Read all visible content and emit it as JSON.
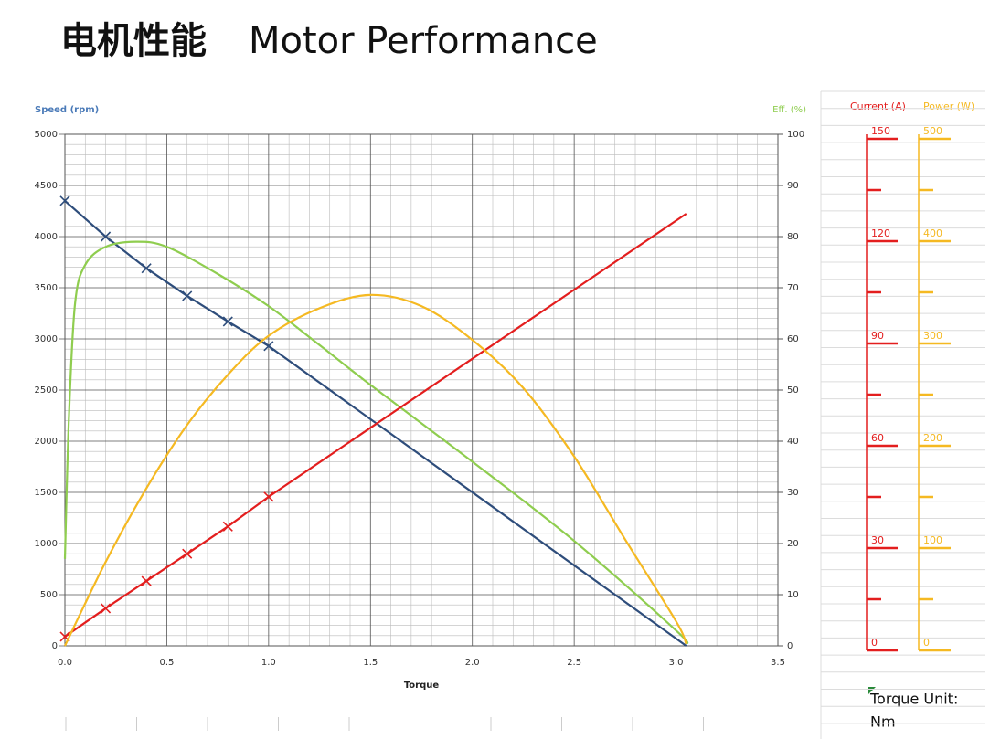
{
  "chart_data": {
    "type": "line",
    "title": [
      "电机性能",
      "Motor Performance"
    ],
    "x_label": "Torque",
    "y_label": "Speed (rpm)",
    "y2_label": "Eff. (%)",
    "y3_label": "Current (A)",
    "y4_label": "Power (W)",
    "note": [
      "Torque Unit:",
      "Nm"
    ],
    "xlim": [
      0,
      3.5
    ],
    "xticks": [
      {
        "value": 0,
        "label": "0.0"
      },
      0.5,
      {
        "value": 1,
        "label": "1.0"
      },
      1.5,
      {
        "value": 2,
        "label": "2.0"
      },
      2.5,
      {
        "value": 3,
        "label": "3.0"
      },
      3.5
    ],
    "ylim": [
      0,
      5000
    ],
    "yticks": [
      0,
      500,
      1000,
      1500,
      2000,
      2500,
      3000,
      3500,
      4000,
      4500,
      5000
    ],
    "y2lim": [
      0,
      100
    ],
    "y2ticks": [
      0,
      10,
      20,
      30,
      40,
      50,
      60,
      70,
      80,
      90,
      100
    ],
    "y3lim": [
      0,
      150
    ],
    "y3ticks": [
      0,
      30,
      60,
      90,
      120,
      150
    ],
    "y4lim": [
      0,
      500
    ],
    "y4ticks": [
      0,
      100,
      200,
      300,
      400,
      500
    ],
    "grid": true,
    "minor_grid": 5,
    "series": [
      {
        "name": "Speed",
        "color": "#2e4d7b",
        "axis": "y",
        "marker": "x",
        "x": [
          0,
          0.2,
          0.4,
          0.6,
          0.8,
          1.0,
          3.05
        ],
        "values": [
          4350,
          4000,
          3690,
          3420,
          3170,
          2930,
          0
        ]
      },
      {
        "name": "Efficiency",
        "color": "#8fcd4f",
        "axis": "y2",
        "x": [
          0,
          0.02,
          0.05,
          0.1,
          0.2,
          0.35,
          0.5,
          0.75,
          1.0,
          1.25,
          1.5,
          2.0,
          2.5,
          3.0,
          3.05
        ],
        "values": [
          17,
          45,
          67,
          74.5,
          78,
          79,
          78,
          72.7,
          66.4,
          58.8,
          51,
          36,
          20.5,
          3,
          0.4
        ]
      },
      {
        "name": "Current",
        "color": "#e31e1e",
        "axis": "y3",
        "marker": "x",
        "x": [
          0,
          0.2,
          0.4,
          0.6,
          0.8,
          1.0,
          3.05
        ],
        "values": [
          2.7,
          11,
          19,
          27,
          35,
          43.7,
          126.7
        ]
      },
      {
        "name": "Power",
        "color": "#f5b922",
        "axis": "y4",
        "x": [
          0,
          0.2,
          0.4,
          0.6,
          0.8,
          1.0,
          1.25,
          1.5,
          1.75,
          2.0,
          2.25,
          2.5,
          2.75,
          3.0,
          3.05
        ],
        "values": [
          0,
          82,
          154,
          216,
          265,
          303,
          330,
          343,
          332,
          299,
          252,
          185,
          104,
          24,
          2
        ]
      }
    ]
  }
}
